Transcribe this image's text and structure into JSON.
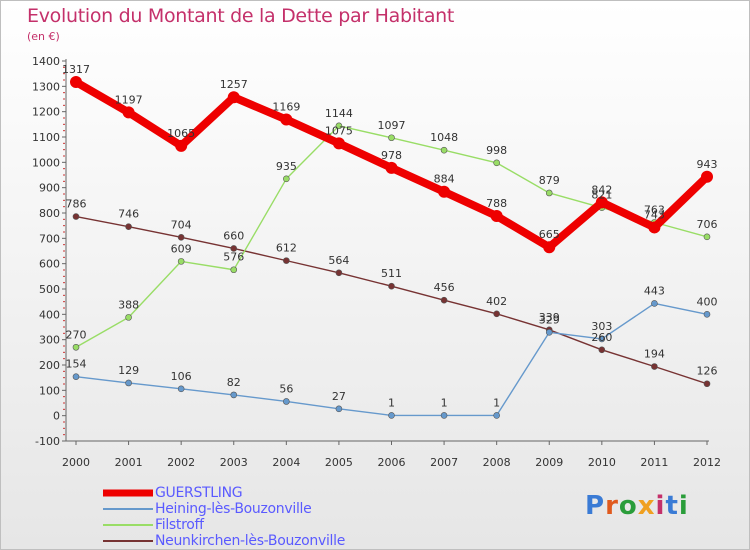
{
  "header": {
    "title": "Evolution du Montant de la Dette par Habitant",
    "subtitle": "(en €)"
  },
  "logo": {
    "text": "Proxiti",
    "colors": [
      "#3a7bd5",
      "#e05a1e",
      "#2a9d3a",
      "#f0a020",
      "#c4306a",
      "#3a7bd5",
      "#2a9d3a"
    ]
  },
  "chart_data": {
    "type": "line",
    "title": "Evolution du Montant de la Dette par Habitant",
    "subtitle": "(en €)",
    "xlabel": "",
    "ylabel": "",
    "x": [
      "2000",
      "2001",
      "2002",
      "2003",
      "2004",
      "2005",
      "2006",
      "2007",
      "2008",
      "2009",
      "2010",
      "2011",
      "2012"
    ],
    "ylim": [
      -100,
      1400
    ],
    "yticks": [
      -100,
      0,
      100,
      200,
      300,
      400,
      500,
      600,
      700,
      800,
      900,
      1000,
      1100,
      1200,
      1300,
      1400
    ],
    "grid": false,
    "legend_position": "bottom-left",
    "series": [
      {
        "name": "GUERSTLING",
        "color": "#ee0000",
        "values": [
          1317,
          1197,
          1065,
          1257,
          1169,
          1075,
          978,
          884,
          788,
          665,
          842,
          743,
          943
        ]
      },
      {
        "name": "Heining-lès-Bouzonville",
        "color": "#6699cc",
        "values": [
          154,
          129,
          106,
          82,
          56,
          27,
          1,
          1,
          1,
          329,
          303,
          443,
          400
        ]
      },
      {
        "name": "Filstroff",
        "color": "#99dd66",
        "values": [
          270,
          388,
          609,
          576,
          935,
          1144,
          1097,
          1048,
          998,
          879,
          821,
          763,
          706
        ]
      },
      {
        "name": "Neunkirchen-lès-Bouzonville",
        "color": "#773333",
        "values": [
          786,
          746,
          704,
          660,
          612,
          564,
          511,
          456,
          402,
          339,
          260,
          194,
          126
        ]
      }
    ]
  }
}
